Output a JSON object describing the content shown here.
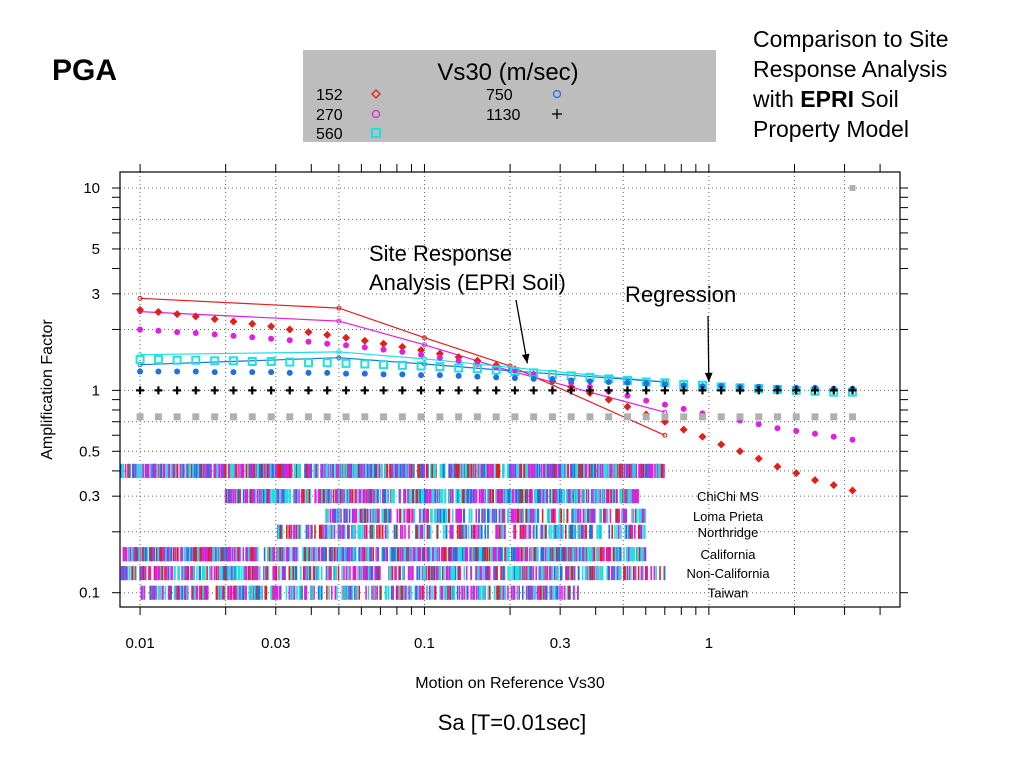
{
  "slide": {
    "title": "PGA",
    "note_line1": "Comparison to Site",
    "note_line2": "Response Analysis",
    "note_line3_pre": "with ",
    "note_line3_bold": "EPRI",
    "note_line3_post": " Soil",
    "note_line4": "Property Model",
    "footer": "Sa [T=0.01sec]"
  },
  "chart_data": {
    "type": "scatter",
    "xlabel": "Motion on Reference Vs30",
    "ylabel": "Amplification Factor",
    "xscale": "log",
    "yscale": "log",
    "xlim": [
      0.0085,
      4.7
    ],
    "ylim": [
      0.085,
      12
    ],
    "x_ticks": [
      0.01,
      0.03,
      0.1,
      0.3,
      1
    ],
    "x_tick_labels": [
      "0.01",
      "0.03",
      "0.1",
      "0.3",
      "1"
    ],
    "y_ticks": [
      0.1,
      0.3,
      0.5,
      1,
      3,
      5,
      10
    ],
    "y_tick_labels": [
      "0.1",
      "0.3",
      "0.5",
      "1",
      "3",
      "5",
      "10"
    ],
    "grid": true,
    "legend": {
      "title": "Vs30 (m/sec)",
      "position": "top-center",
      "background": "#bdbdbd",
      "entries": [
        {
          "label": "152",
          "color": "#e0201a",
          "marker": "diamond"
        },
        {
          "label": "270",
          "color": "#e020e0",
          "marker": "circle"
        },
        {
          "label": "560",
          "color": "#20e0e0",
          "marker": "x-square"
        },
        {
          "label": "750",
          "color": "#2070e0",
          "marker": "circle"
        },
        {
          "label": "1130",
          "color": "#000000",
          "marker": "plus"
        }
      ]
    },
    "regression_series": [
      {
        "color": "#e0201a",
        "marker": "diamond",
        "x": [
          0.01,
          0.0116,
          0.0135,
          0.0157,
          0.0183,
          0.0213,
          0.0248,
          0.0289,
          0.0336,
          0.0391,
          0.0455,
          0.053,
          0.0617,
          0.0718,
          0.0836,
          0.0973,
          0.1133,
          0.1319,
          0.1535,
          0.1787,
          0.208,
          0.2421,
          0.2818,
          0.328,
          0.3818,
          0.4444,
          0.5173,
          0.6021,
          0.7008,
          0.8157,
          0.9495,
          1.1052,
          1.2865,
          1.4974,
          1.743,
          2.0288,
          2.3615,
          2.7488,
          3.2
        ],
        "y": [
          2.5,
          2.44,
          2.38,
          2.32,
          2.25,
          2.19,
          2.13,
          2.07,
          2.0,
          1.94,
          1.88,
          1.82,
          1.76,
          1.7,
          1.64,
          1.58,
          1.52,
          1.46,
          1.4,
          1.33,
          1.27,
          1.2,
          1.11,
          1.04,
          0.97,
          0.9,
          0.83,
          0.76,
          0.7,
          0.64,
          0.59,
          0.54,
          0.5,
          0.46,
          0.42,
          0.39,
          0.36,
          0.34,
          0.32
        ]
      },
      {
        "color": "#e020e0",
        "marker": "circle",
        "x": [
          0.01,
          0.0116,
          0.0135,
          0.0157,
          0.0183,
          0.0213,
          0.0248,
          0.0289,
          0.0336,
          0.0391,
          0.0455,
          0.053,
          0.0617,
          0.0718,
          0.0836,
          0.0973,
          0.1133,
          0.1319,
          0.1535,
          0.1787,
          0.208,
          0.2421,
          0.2818,
          0.328,
          0.3818,
          0.4444,
          0.5173,
          0.6021,
          0.7008,
          0.8157,
          0.9495,
          1.1052,
          1.2865,
          1.4974,
          1.743,
          2.0288,
          2.3615,
          2.7488,
          3.2
        ],
        "y": [
          2.0,
          1.97,
          1.94,
          1.92,
          1.89,
          1.86,
          1.83,
          1.8,
          1.77,
          1.74,
          1.7,
          1.67,
          1.63,
          1.59,
          1.55,
          1.5,
          1.45,
          1.4,
          1.35,
          1.3,
          1.25,
          1.2,
          1.14,
          1.09,
          1.04,
          0.99,
          0.94,
          0.89,
          0.85,
          0.81,
          0.77,
          0.74,
          0.71,
          0.68,
          0.65,
          0.63,
          0.61,
          0.59,
          0.57
        ]
      },
      {
        "color": "#20e0e0",
        "marker": "x-square",
        "x": [
          0.01,
          0.0116,
          0.0135,
          0.0157,
          0.0183,
          0.0213,
          0.0248,
          0.0289,
          0.0336,
          0.0391,
          0.0455,
          0.053,
          0.0617,
          0.0718,
          0.0836,
          0.0973,
          0.1133,
          0.1319,
          0.1535,
          0.1787,
          0.208,
          0.2421,
          0.2818,
          0.328,
          0.3818,
          0.4444,
          0.5173,
          0.6021,
          0.7008,
          0.8157,
          0.9495,
          1.1052,
          1.2865,
          1.4974,
          1.743,
          2.0288,
          2.3615,
          2.7488,
          3.2
        ],
        "y": [
          1.42,
          1.42,
          1.41,
          1.41,
          1.4,
          1.4,
          1.39,
          1.39,
          1.38,
          1.37,
          1.37,
          1.36,
          1.35,
          1.34,
          1.33,
          1.32,
          1.31,
          1.29,
          1.28,
          1.26,
          1.24,
          1.22,
          1.2,
          1.18,
          1.16,
          1.14,
          1.12,
          1.1,
          1.09,
          1.07,
          1.06,
          1.04,
          1.03,
          1.02,
          1.01,
          1.0,
          0.99,
          0.98,
          0.98
        ]
      },
      {
        "color": "#2070e0",
        "marker": "circle",
        "x": [
          0.01,
          0.0116,
          0.0135,
          0.0157,
          0.0183,
          0.0213,
          0.0248,
          0.0289,
          0.0336,
          0.0391,
          0.0455,
          0.053,
          0.0617,
          0.0718,
          0.0836,
          0.0973,
          0.1133,
          0.1319,
          0.1535,
          0.1787,
          0.208,
          0.2421,
          0.2818,
          0.328,
          0.3818,
          0.4444,
          0.5173,
          0.6021,
          0.7008,
          0.8157,
          0.9495,
          1.1052,
          1.2865,
          1.4974,
          1.743,
          2.0288,
          2.3615,
          2.7488,
          3.2
        ],
        "y": [
          1.24,
          1.24,
          1.24,
          1.24,
          1.23,
          1.23,
          1.23,
          1.23,
          1.22,
          1.22,
          1.22,
          1.21,
          1.21,
          1.2,
          1.2,
          1.19,
          1.19,
          1.18,
          1.17,
          1.16,
          1.15,
          1.14,
          1.13,
          1.12,
          1.11,
          1.1,
          1.09,
          1.08,
          1.07,
          1.06,
          1.05,
          1.05,
          1.04,
          1.04,
          1.03,
          1.03,
          1.03,
          1.02,
          1.02
        ]
      },
      {
        "color": "#000000",
        "marker": "plus",
        "x": [
          0.01,
          0.0116,
          0.0135,
          0.0157,
          0.0183,
          0.0213,
          0.0248,
          0.0289,
          0.0336,
          0.0391,
          0.0455,
          0.053,
          0.0617,
          0.0718,
          0.0836,
          0.0973,
          0.1133,
          0.1319,
          0.1535,
          0.1787,
          0.208,
          0.2421,
          0.2818,
          0.328,
          0.3818,
          0.4444,
          0.5173,
          0.6021,
          0.7008,
          0.8157,
          0.9495,
          1.1052,
          1.2865,
          1.4974,
          1.743,
          2.0288,
          2.3615,
          2.7488,
          3.2
        ],
        "y": [
          1.0,
          1.0,
          1.0,
          1.0,
          1.0,
          1.0,
          1.0,
          1.0,
          1.0,
          1.0,
          1.0,
          1.0,
          1.0,
          1.0,
          1.0,
          1.0,
          1.0,
          1.0,
          1.0,
          1.0,
          1.0,
          1.0,
          1.0,
          1.0,
          1.0,
          1.0,
          1.0,
          1.0,
          1.0,
          1.0,
          1.0,
          1.0,
          1.0,
          1.0,
          1.0,
          1.0,
          1.0,
          1.0,
          1.0
        ]
      },
      {
        "color": "#b0b0b0",
        "marker": "square",
        "x": [
          0.01,
          0.0116,
          0.0135,
          0.0157,
          0.0183,
          0.0213,
          0.0248,
          0.0289,
          0.0336,
          0.0391,
          0.0455,
          0.053,
          0.0617,
          0.0718,
          0.0836,
          0.0973,
          0.1133,
          0.1319,
          0.1535,
          0.1787,
          0.208,
          0.2421,
          0.2818,
          0.328,
          0.3818,
          0.4444,
          0.5173,
          0.6021,
          0.7008,
          0.8157,
          0.9495,
          1.1052,
          1.2865,
          1.4974,
          1.743,
          2.0288,
          2.3615,
          2.7488,
          3.2
        ],
        "y": [
          0.74,
          0.74,
          0.74,
          0.74,
          0.74,
          0.74,
          0.74,
          0.74,
          0.74,
          0.74,
          0.74,
          0.74,
          0.74,
          0.74,
          0.74,
          0.74,
          0.74,
          0.74,
          0.74,
          0.74,
          0.74,
          0.74,
          0.74,
          0.74,
          0.74,
          0.74,
          0.74,
          0.74,
          0.74,
          0.74,
          0.74,
          0.74,
          0.74,
          0.74,
          0.74,
          0.74,
          0.74,
          0.74,
          0.74
        ]
      }
    ],
    "site_response_series": [
      {
        "color": "#e0201a",
        "x": [
          0.01,
          0.05,
          0.1,
          0.2,
          0.7
        ],
        "y": [
          2.85,
          2.55,
          1.82,
          1.32,
          0.6
        ]
      },
      {
        "color": "#e020e0",
        "x": [
          0.01,
          0.05,
          0.1,
          0.2,
          0.7
        ],
        "y": [
          2.45,
          2.2,
          1.68,
          1.25,
          0.78
        ]
      },
      {
        "color": "#20e0e0",
        "x": [
          0.01,
          0.05,
          0.1,
          0.2,
          0.7
        ],
        "y": [
          1.5,
          1.55,
          1.43,
          1.3,
          1.1
        ]
      },
      {
        "color": "#2070e0",
        "x": [
          0.01,
          0.05,
          0.1,
          0.2,
          0.7
        ],
        "y": [
          1.34,
          1.45,
          1.35,
          1.25,
          1.1
        ]
      }
    ],
    "outlier_point": {
      "x": 3.2,
      "y": 10.0,
      "color": "#b0b0b0"
    },
    "annotations": [
      {
        "text_line1": "Site Response",
        "text_line2": "Analysis (EPRI Soil)",
        "arrow_to": {
          "x": 0.23,
          "y": 1.36
        }
      },
      {
        "text_line1": "Regression",
        "arrow_to": {
          "x": 1.0,
          "y": 1.1
        }
      }
    ],
    "data_sets": [
      {
        "label": "ChiChi MS",
        "y": 0.3,
        "x_range": [
          0.02,
          0.58
        ],
        "density": 0.9
      },
      {
        "label": "Loma Prieta",
        "y": 0.24,
        "x_range": [
          0.045,
          0.6
        ],
        "density": 0.6
      },
      {
        "label": "Northridge",
        "y": 0.2,
        "x_range": [
          0.03,
          0.6
        ],
        "density": 0.5
      },
      {
        "label": "California",
        "y": 0.155,
        "x_range": [
          0.0085,
          0.6
        ],
        "density": 1.0
      },
      {
        "label": "Non-California",
        "y": 0.125,
        "x_range": [
          0.0085,
          0.7
        ],
        "density": 0.6
      },
      {
        "label": "Taiwan",
        "y": 0.1,
        "x_range": [
          0.01,
          0.35
        ],
        "density": 0.6
      },
      {
        "label": "",
        "y": 0.4,
        "x_range": [
          0.0085,
          0.7
        ],
        "density": 1.0
      }
    ]
  }
}
